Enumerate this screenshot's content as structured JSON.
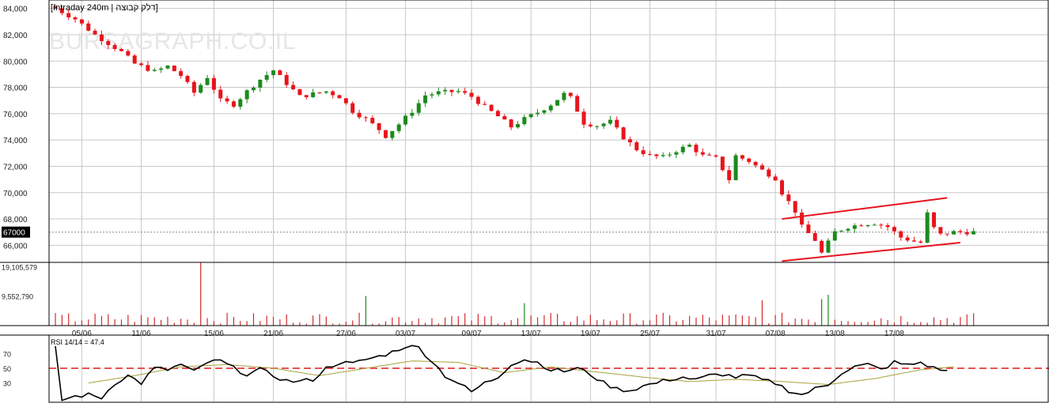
{
  "chart_data": [
    {
      "panel": "price",
      "type": "candlestick",
      "title": "[Intraday 240m | דלק קבוצה]",
      "watermark": "BURSAGRAPH.CO.IL",
      "y_ticks": [
        "84,000",
        "82,000",
        "80,000",
        "78,000",
        "76,000",
        "74,000",
        "72,000",
        "70,000",
        "68,000",
        "66,000"
      ],
      "y_tick_values": [
        84000,
        82000,
        80000,
        78000,
        76000,
        74000,
        72000,
        70000,
        68000,
        66000
      ],
      "ylim": [
        64700,
        84400
      ],
      "last_price_label": "67000",
      "last_price": 67000,
      "x_ticks": [
        "05/06",
        "11/06",
        "15/06",
        "21/06",
        "27/06",
        "03/07",
        "09/07",
        "13/07",
        "19/07",
        "25/07",
        "31/07",
        "07/08",
        "13/08",
        "17/08"
      ],
      "x_tick_positions": [
        4,
        13,
        24,
        33,
        44,
        53,
        63,
        72,
        81,
        90,
        100,
        109,
        118,
        127
      ],
      "bar_count": 140,
      "anchors": [
        [
          0,
          84000
        ],
        [
          3,
          83200
        ],
        [
          6,
          82000
        ],
        [
          10,
          80700
        ],
        [
          12,
          79800
        ],
        [
          15,
          79200
        ],
        [
          17,
          79600
        ],
        [
          19,
          78900
        ],
        [
          21,
          77600
        ],
        [
          23,
          78800
        ],
        [
          25,
          77000
        ],
        [
          27,
          76700
        ],
        [
          29,
          77700
        ],
        [
          31,
          78600
        ],
        [
          33,
          79300
        ],
        [
          35,
          78300
        ],
        [
          37,
          77300
        ],
        [
          39,
          77500
        ],
        [
          41,
          77700
        ],
        [
          43,
          77300
        ],
        [
          45,
          76200
        ],
        [
          47,
          75600
        ],
        [
          49,
          74800
        ],
        [
          50,
          74300
        ],
        [
          52,
          75200
        ],
        [
          54,
          76200
        ],
        [
          56,
          77400
        ],
        [
          58,
          77600
        ],
        [
          61,
          77700
        ],
        [
          63,
          77300
        ],
        [
          65,
          76500
        ],
        [
          67,
          75800
        ],
        [
          69,
          75000
        ],
        [
          71,
          75600
        ],
        [
          73,
          76100
        ],
        [
          75,
          76700
        ],
        [
          77,
          77500
        ],
        [
          78,
          77200
        ],
        [
          80,
          75300
        ],
        [
          82,
          75100
        ],
        [
          84,
          75400
        ],
        [
          86,
          74200
        ],
        [
          88,
          73300
        ],
        [
          90,
          72800
        ],
        [
          92,
          72700
        ],
        [
          94,
          73200
        ],
        [
          96,
          73600
        ],
        [
          98,
          72800
        ],
        [
          100,
          72600
        ],
        [
          102,
          71000
        ],
        [
          103,
          72800
        ],
        [
          105,
          72400
        ],
        [
          107,
          71700
        ],
        [
          109,
          71100
        ],
        [
          110,
          70000
        ],
        [
          112,
          68600
        ],
        [
          113,
          67400
        ],
        [
          115,
          66400
        ],
        [
          116,
          65400
        ],
        [
          118,
          67000
        ],
        [
          120,
          67400
        ],
        [
          122,
          67600
        ],
        [
          124,
          67700
        ],
        [
          126,
          67400
        ],
        [
          128,
          66600
        ],
        [
          130,
          66300
        ],
        [
          131,
          66200
        ],
        [
          132,
          68400
        ],
        [
          133,
          67300
        ],
        [
          134,
          66800
        ],
        [
          136,
          67000
        ]
      ],
      "channel_upper": [
        [
          110,
          68000
        ],
        [
          135,
          69600
        ]
      ],
      "channel_lower": [
        [
          110,
          64800
        ],
        [
          137,
          66200
        ]
      ]
    },
    {
      "panel": "volume",
      "type": "bar",
      "y_ticks": [
        "19,105,579",
        "9,552,790"
      ],
      "y_tick_values": [
        19105579,
        9552790
      ],
      "ylim": [
        0,
        20000000
      ],
      "spikes": [
        [
          22,
          20500000
        ],
        [
          47,
          9600000
        ],
        [
          71,
          7300000
        ],
        [
          107,
          8200000
        ],
        [
          117,
          10000000
        ],
        [
          116,
          8600000
        ]
      ]
    },
    {
      "panel": "rsi",
      "type": "line",
      "label": "RSI 14/14 = 47.4",
      "rsi_value": 47.4,
      "y_ticks": [
        "70",
        "50",
        "30"
      ],
      "y_tick_values": [
        70,
        50,
        30
      ],
      "ylim": [
        5,
        95
      ],
      "reference_level": 50,
      "rsi_anchors": [
        [
          0,
          80
        ],
        [
          1,
          7
        ],
        [
          3,
          12
        ],
        [
          5,
          14
        ],
        [
          7,
          10
        ],
        [
          9,
          30
        ],
        [
          11,
          40
        ],
        [
          13,
          30
        ],
        [
          15,
          50
        ],
        [
          17,
          48
        ],
        [
          19,
          55
        ],
        [
          21,
          45
        ],
        [
          23,
          58
        ],
        [
          25,
          60
        ],
        [
          27,
          50
        ],
        [
          29,
          42
        ],
        [
          31,
          48
        ],
        [
          33,
          40
        ],
        [
          35,
          33
        ],
        [
          37,
          32
        ],
        [
          39,
          35
        ],
        [
          41,
          50
        ],
        [
          43,
          58
        ],
        [
          45,
          56
        ],
        [
          47,
          62
        ],
        [
          49,
          66
        ],
        [
          51,
          72
        ],
        [
          53,
          80
        ],
        [
          55,
          78
        ],
        [
          57,
          60
        ],
        [
          59,
          40
        ],
        [
          61,
          30
        ],
        [
          63,
          18
        ],
        [
          65,
          30
        ],
        [
          67,
          38
        ],
        [
          69,
          56
        ],
        [
          71,
          62
        ],
        [
          73,
          58
        ],
        [
          75,
          48
        ],
        [
          77,
          46
        ],
        [
          79,
          50
        ],
        [
          81,
          42
        ],
        [
          83,
          30
        ],
        [
          85,
          22
        ],
        [
          87,
          20
        ],
        [
          89,
          26
        ],
        [
          91,
          30
        ],
        [
          93,
          35
        ],
        [
          95,
          38
        ],
        [
          97,
          34
        ],
        [
          99,
          40
        ],
        [
          101,
          42
        ],
        [
          103,
          38
        ],
        [
          105,
          40
        ],
        [
          107,
          34
        ],
        [
          109,
          30
        ],
        [
          111,
          20
        ],
        [
          113,
          14
        ],
        [
          115,
          22
        ],
        [
          117,
          28
        ],
        [
          119,
          44
        ],
        [
          121,
          52
        ],
        [
          123,
          55
        ],
        [
          125,
          48
        ],
        [
          127,
          58
        ],
        [
          129,
          54
        ],
        [
          131,
          58
        ],
        [
          133,
          50
        ],
        [
          135,
          47
        ]
      ],
      "signal_anchors": [
        [
          5,
          30
        ],
        [
          12,
          40
        ],
        [
          19,
          52
        ],
        [
          26,
          55
        ],
        [
          33,
          50
        ],
        [
          40,
          40
        ],
        [
          47,
          50
        ],
        [
          54,
          60
        ],
        [
          61,
          58
        ],
        [
          68,
          44
        ],
        [
          75,
          52
        ],
        [
          82,
          45
        ],
        [
          89,
          38
        ],
        [
          96,
          32
        ],
        [
          103,
          35
        ],
        [
          110,
          32
        ],
        [
          117,
          28
        ],
        [
          124,
          36
        ],
        [
          131,
          48
        ],
        [
          136,
          52
        ]
      ]
    }
  ],
  "colors": {
    "up": "#1c8a1c",
    "down": "#e8141c",
    "volume": "#d42a2a",
    "volume_green": "#1c8a1c",
    "rsi_line": "#000000",
    "signal_line": "#a8a23a",
    "reference": "#e01818",
    "channel": "#e8141c"
  }
}
